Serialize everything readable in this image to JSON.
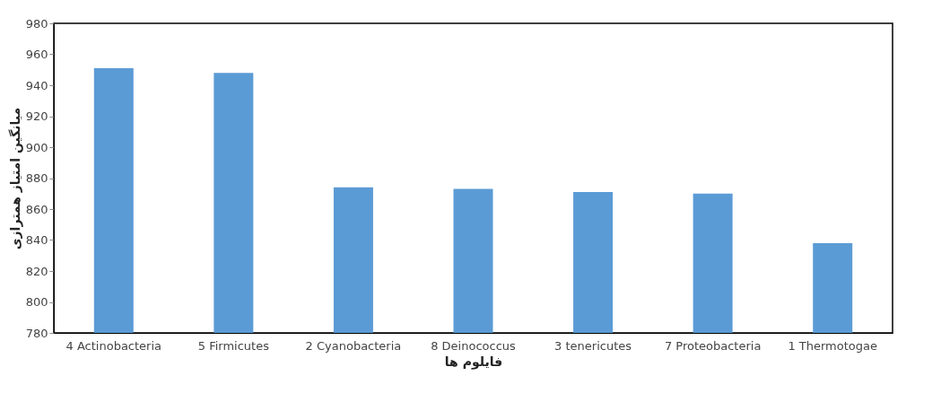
{
  "chart_data": {
    "type": "bar",
    "xlabel": "فایلوم ها",
    "ylabel": "میانگین امتیاز همترازی",
    "categories": [
      "4 Actinobacteria",
      "5 Firmicutes",
      "2 Cyanobacteria",
      "8 Deinococcus",
      "3 tenericutes",
      "7 Proteobacteria",
      "1 Thermotogae"
    ],
    "values": [
      951,
      948,
      874,
      873,
      871,
      870,
      838
    ],
    "color": "#5b9bd5",
    "ylim": [
      780,
      980
    ],
    "yticks": [
      780,
      800,
      820,
      840,
      860,
      880,
      900,
      920,
      940,
      960,
      980
    ],
    "grid": false
  }
}
